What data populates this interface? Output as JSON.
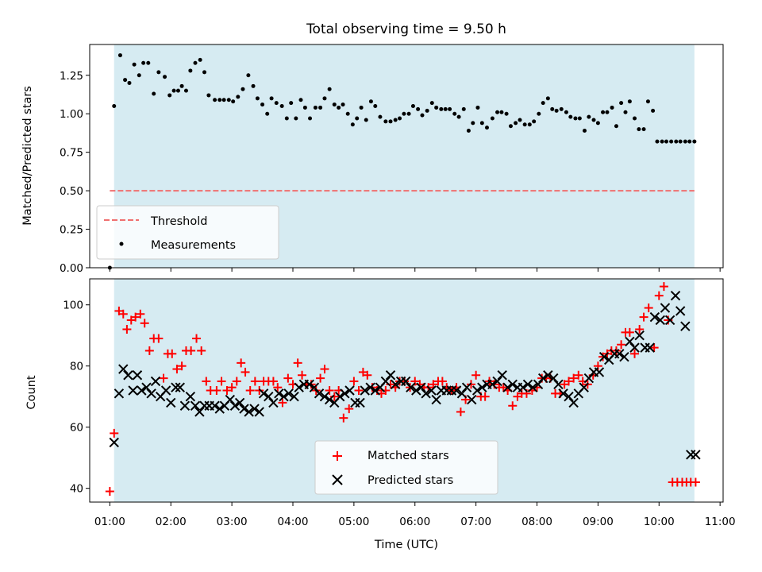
{
  "chart_data": [
    {
      "type": "scatter",
      "title": "Total observing time = 9.50 h",
      "xlabel": "",
      "ylabel": "Matched/Predicted stars",
      "x_unit": "hours (UTC)",
      "xlim": [
        0.67,
        11.05
      ],
      "ylim": [
        0.0,
        1.45
      ],
      "yticks": [
        "0.00",
        "0.25",
        "0.50",
        "0.75",
        "1.00",
        "1.25"
      ],
      "shaded_span": [
        1.07,
        10.58
      ],
      "shade_color": "#add8e6",
      "threshold": {
        "name": "Threshold",
        "value": 0.5,
        "x_range": [
          1.0,
          10.58
        ],
        "color": "#f07070",
        "style": "dashed"
      },
      "series": [
        {
          "name": "Measurements",
          "color": "#000000",
          "marker": "dot",
          "x": [
            1.0,
            1.07,
            1.17,
            1.25,
            1.32,
            1.4,
            1.48,
            1.55,
            1.63,
            1.72,
            1.8,
            1.9,
            1.98,
            2.05,
            2.12,
            2.18,
            2.25,
            2.32,
            2.4,
            2.48,
            2.55,
            2.62,
            2.72,
            2.8,
            2.87,
            2.95,
            3.02,
            3.1,
            3.18,
            3.27,
            3.35,
            3.42,
            3.5,
            3.58,
            3.65,
            3.73,
            3.82,
            3.9,
            3.97,
            4.05,
            4.13,
            4.2,
            4.28,
            4.37,
            4.45,
            4.52,
            4.6,
            4.68,
            4.75,
            4.82,
            4.9,
            4.98,
            5.05,
            5.12,
            5.2,
            5.28,
            5.35,
            5.43,
            5.52,
            5.6,
            5.68,
            5.75,
            5.82,
            5.9,
            5.97,
            6.05,
            6.12,
            6.2,
            6.28,
            6.35,
            6.43,
            6.5,
            6.57,
            6.65,
            6.72,
            6.8,
            6.88,
            6.95,
            7.03,
            7.1,
            7.18,
            7.27,
            7.35,
            7.42,
            7.5,
            7.57,
            7.65,
            7.72,
            7.8,
            7.88,
            7.95,
            8.03,
            8.1,
            8.18,
            8.25,
            8.32,
            8.4,
            8.48,
            8.55,
            8.63,
            8.7,
            8.78,
            8.85,
            8.93,
            9.0,
            9.08,
            9.15,
            9.23,
            9.3,
            9.38,
            9.45,
            9.52,
            9.6,
            9.67,
            9.75,
            9.82,
            9.9,
            9.97,
            10.05,
            10.12,
            10.2,
            10.28,
            10.35,
            10.43,
            10.5,
            10.58
          ],
          "values": [
            0.0,
            1.05,
            1.38,
            1.22,
            1.2,
            1.32,
            1.25,
            1.33,
            1.33,
            1.13,
            1.27,
            1.24,
            1.12,
            1.15,
            1.15,
            1.18,
            1.15,
            1.28,
            1.33,
            1.35,
            1.27,
            1.12,
            1.09,
            1.09,
            1.09,
            1.09,
            1.08,
            1.11,
            1.16,
            1.25,
            1.18,
            1.1,
            1.06,
            1.0,
            1.1,
            1.07,
            1.05,
            0.97,
            1.07,
            0.97,
            1.09,
            1.04,
            0.97,
            1.04,
            1.04,
            1.1,
            1.16,
            1.06,
            1.04,
            1.06,
            1.0,
            0.93,
            0.97,
            1.04,
            0.96,
            1.08,
            1.05,
            0.98,
            0.95,
            0.95,
            0.96,
            0.97,
            1.0,
            1.0,
            1.05,
            1.03,
            0.99,
            1.02,
            1.07,
            1.04,
            1.03,
            1.03,
            1.03,
            1.0,
            0.98,
            1.03,
            0.89,
            0.94,
            1.04,
            0.94,
            0.91,
            0.97,
            1.01,
            1.01,
            1.0,
            0.92,
            0.94,
            0.96,
            0.93,
            0.93,
            0.95,
            1.0,
            1.07,
            1.1,
            1.03,
            1.02,
            1.03,
            1.01,
            0.98,
            0.97,
            0.97,
            0.89,
            0.98,
            0.96,
            0.94,
            1.01,
            1.01,
            1.04,
            0.92,
            1.07,
            1.01,
            1.08,
            0.97,
            0.9,
            0.9,
            1.08,
            1.02,
            0.82,
            0.82,
            0.82,
            0.82,
            0.82,
            0.82,
            0.82,
            0.82,
            0.82
          ]
        }
      ],
      "legend": {
        "position": "lower-left",
        "entries": [
          "Threshold",
          "Measurements"
        ]
      }
    },
    {
      "type": "scatter",
      "title": "",
      "xlabel": "Time (UTC)",
      "ylabel": "Count",
      "x_unit": "hours (UTC)",
      "xlim": [
        0.67,
        11.05
      ],
      "ylim": [
        35.5,
        108.5
      ],
      "xticks": [
        "01:00",
        "02:00",
        "03:00",
        "04:00",
        "05:00",
        "06:00",
        "07:00",
        "08:00",
        "09:00",
        "10:00",
        "11:00"
      ],
      "yticks": [
        "40",
        "60",
        "80",
        "100"
      ],
      "shaded_span": [
        1.07,
        10.58
      ],
      "shade_color": "#add8e6",
      "series": [
        {
          "name": "Matched stars",
          "color": "#ff0000",
          "marker": "plus",
          "x": [
            1.0,
            1.07,
            1.15,
            1.22,
            1.28,
            1.35,
            1.42,
            1.5,
            1.57,
            1.65,
            1.72,
            1.8,
            1.88,
            1.95,
            2.02,
            2.1,
            2.18,
            2.25,
            2.33,
            2.42,
            2.5,
            2.58,
            2.65,
            2.75,
            2.83,
            2.92,
            3.0,
            3.08,
            3.15,
            3.22,
            3.3,
            3.38,
            3.45,
            3.52,
            3.6,
            3.68,
            3.75,
            3.83,
            3.92,
            4.0,
            4.08,
            4.15,
            4.22,
            4.3,
            4.38,
            4.45,
            4.52,
            4.6,
            4.68,
            4.75,
            4.83,
            4.92,
            5.0,
            5.08,
            5.15,
            5.22,
            5.3,
            5.38,
            5.45,
            5.52,
            5.6,
            5.68,
            5.75,
            5.83,
            5.92,
            6.0,
            6.08,
            6.15,
            6.22,
            6.3,
            6.38,
            6.45,
            6.52,
            6.6,
            6.68,
            6.75,
            6.83,
            6.92,
            7.0,
            7.08,
            7.15,
            7.22,
            7.3,
            7.38,
            7.45,
            7.52,
            7.6,
            7.68,
            7.75,
            7.83,
            7.92,
            8.0,
            8.08,
            8.15,
            8.22,
            8.3,
            8.38,
            8.45,
            8.52,
            8.6,
            8.68,
            8.75,
            8.83,
            8.92,
            9.0,
            9.08,
            9.15,
            9.22,
            9.3,
            9.38,
            9.45,
            9.52,
            9.6,
            9.68,
            9.75,
            9.83,
            9.92,
            10.0,
            10.08,
            10.15,
            10.22,
            10.3,
            10.38,
            10.45,
            10.52,
            10.6
          ],
          "values": [
            39,
            58,
            98,
            97,
            92,
            95,
            96,
            97,
            94,
            85,
            89,
            89,
            76,
            84,
            84,
            79,
            80,
            85,
            85,
            89,
            85,
            75,
            72,
            72,
            75,
            72,
            73,
            75,
            81,
            78,
            72,
            75,
            72,
            75,
            75,
            75,
            73,
            68,
            76,
            74,
            81,
            77,
            74,
            74,
            72,
            76,
            79,
            72,
            70,
            72,
            63,
            66,
            75,
            72,
            78,
            77,
            73,
            72,
            71,
            72,
            74,
            73,
            75,
            75,
            73,
            75,
            74,
            73,
            73,
            74,
            75,
            75,
            73,
            72,
            73,
            65,
            69,
            74,
            77,
            70,
            70,
            75,
            74,
            73,
            73,
            72,
            67,
            70,
            71,
            71,
            72,
            73,
            76,
            76,
            76,
            71,
            71,
            74,
            75,
            76,
            77,
            75,
            74,
            77,
            80,
            83,
            84,
            85,
            85,
            87,
            91,
            91,
            84,
            92,
            96,
            99,
            86,
            103,
            106,
            95,
            42,
            42,
            42,
            42,
            42,
            42
          ]
        },
        {
          "name": "Predicted stars",
          "color": "#000000",
          "marker": "x",
          "x": [
            1.07,
            1.15,
            1.22,
            1.3,
            1.38,
            1.45,
            1.52,
            1.6,
            1.68,
            1.75,
            1.83,
            1.92,
            2.0,
            2.08,
            2.15,
            2.23,
            2.32,
            2.4,
            2.47,
            2.55,
            2.63,
            2.72,
            2.8,
            2.88,
            2.97,
            3.05,
            3.13,
            3.2,
            3.28,
            3.37,
            3.45,
            3.52,
            3.6,
            3.68,
            3.77,
            3.85,
            3.93,
            4.02,
            4.1,
            4.18,
            4.27,
            4.35,
            4.43,
            4.52,
            4.6,
            4.68,
            4.77,
            4.85,
            4.93,
            5.02,
            5.1,
            5.18,
            5.27,
            5.35,
            5.43,
            5.52,
            5.6,
            5.68,
            5.77,
            5.85,
            5.93,
            6.02,
            6.1,
            6.18,
            6.27,
            6.35,
            6.43,
            6.52,
            6.6,
            6.68,
            6.77,
            6.85,
            6.93,
            7.02,
            7.1,
            7.18,
            7.27,
            7.35,
            7.43,
            7.52,
            7.6,
            7.68,
            7.77,
            7.85,
            7.93,
            8.02,
            8.1,
            8.18,
            8.27,
            8.35,
            8.43,
            8.52,
            8.6,
            8.68,
            8.77,
            8.85,
            8.93,
            9.02,
            9.1,
            9.18,
            9.27,
            9.35,
            9.43,
            9.52,
            9.6,
            9.68,
            9.77,
            9.85,
            9.93,
            10.02,
            10.1,
            10.18,
            10.27,
            10.35,
            10.43,
            10.52,
            10.6
          ],
          "values": [
            55,
            71,
            79,
            77,
            72,
            77,
            72,
            73,
            71,
            75,
            70,
            72,
            68,
            73,
            73,
            67,
            70,
            67,
            65,
            67,
            67,
            67,
            66,
            67,
            69,
            67,
            68,
            66,
            65,
            66,
            65,
            71,
            70,
            68,
            71,
            70,
            71,
            70,
            73,
            74,
            74,
            73,
            71,
            70,
            69,
            68,
            70,
            71,
            72,
            68,
            68,
            72,
            73,
            72,
            73,
            75,
            77,
            74,
            75,
            75,
            73,
            72,
            73,
            71,
            72,
            69,
            72,
            72,
            72,
            72,
            71,
            73,
            69,
            72,
            73,
            74,
            74,
            75,
            77,
            73,
            74,
            73,
            73,
            74,
            73,
            74,
            76,
            77,
            76,
            74,
            71,
            70,
            68,
            71,
            73,
            76,
            78,
            78,
            83,
            82,
            84,
            84,
            83,
            88,
            86,
            90,
            86,
            86,
            96,
            95,
            99,
            95,
            103,
            98,
            93,
            51,
            51
          ]
        }
      ],
      "legend": {
        "position": "lower-center",
        "entries": [
          "Matched stars",
          "Predicted stars"
        ]
      }
    }
  ]
}
